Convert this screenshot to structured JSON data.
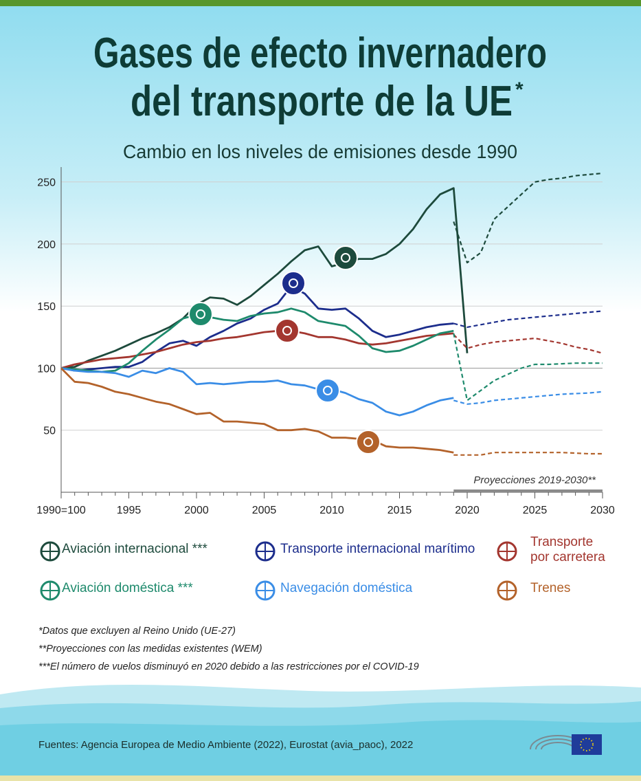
{
  "chart_data": {
    "type": "line",
    "title_lines": [
      "Gases de efecto invernadero",
      "del transporte de la UE"
    ],
    "title_mark": "*",
    "subtitle": "Cambio en los niveles de emisiones desde 1990",
    "x": [
      1990,
      1991,
      1992,
      1993,
      1994,
      1995,
      1996,
      1997,
      1998,
      1999,
      2000,
      2001,
      2002,
      2003,
      2004,
      2005,
      2006,
      2007,
      2008,
      2009,
      2010,
      2011,
      2012,
      2013,
      2014,
      2015,
      2016,
      2017,
      2018,
      2019,
      2020,
      2021,
      2022,
      2023,
      2024,
      2025,
      2026,
      2027,
      2028,
      2029,
      2030
    ],
    "xlim": [
      1990,
      2030
    ],
    "xticks": [
      {
        "value": 1990,
        "label": "1990=100"
      },
      1995,
      2000,
      2005,
      2010,
      2015,
      2020,
      2025,
      2030
    ],
    "ylim": [
      0,
      262
    ],
    "yticks": [
      50,
      100,
      150,
      200,
      250
    ],
    "grid": true,
    "projection_label": "Proyecciones 2019-2030**",
    "projection_range": [
      2019,
      2030
    ],
    "series": [
      {
        "name": "Aviación internacional ***",
        "color": "#1d4a3c",
        "values": [
          100,
          101,
          106,
          110,
          114,
          119,
          124,
          128,
          133,
          140,
          151,
          157,
          156,
          151,
          158,
          167,
          176,
          186,
          195,
          198,
          182,
          185,
          188,
          188,
          192,
          200,
          212,
          228,
          240,
          245,
          112,
          null,
          null,
          null,
          null,
          null,
          null,
          null,
          null,
          null,
          null
        ],
        "projection": [
          null,
          null,
          null,
          null,
          null,
          null,
          null,
          null,
          null,
          null,
          null,
          null,
          null,
          null,
          null,
          null,
          null,
          null,
          null,
          null,
          null,
          null,
          null,
          null,
          null,
          null,
          null,
          null,
          null,
          218,
          185,
          193,
          220,
          230,
          240,
          250,
          252,
          253,
          255,
          256,
          257
        ]
      },
      {
        "name": "Transporte internacional marítimo",
        "color": "#1c2d8c",
        "values": [
          100,
          98,
          99,
          100,
          101,
          101,
          105,
          113,
          120,
          122,
          118,
          125,
          130,
          136,
          140,
          147,
          152,
          166,
          160,
          148,
          147,
          148,
          140,
          130,
          125,
          127,
          130,
          133,
          135,
          136,
          null,
          null,
          null,
          null,
          null,
          null,
          null,
          null,
          null,
          null,
          null
        ],
        "projection": [
          null,
          null,
          null,
          null,
          null,
          null,
          null,
          null,
          null,
          null,
          null,
          null,
          null,
          null,
          null,
          null,
          null,
          null,
          null,
          null,
          null,
          null,
          null,
          null,
          null,
          null,
          null,
          null,
          null,
          136,
          133,
          135,
          137,
          139,
          140,
          141,
          142,
          143,
          144,
          145,
          146
        ]
      },
      {
        "name": "Transporte por carretera",
        "color": "#a3362f",
        "values": [
          100,
          103,
          105,
          107,
          108,
          109,
          111,
          113,
          116,
          119,
          121,
          122,
          124,
          125,
          127,
          129,
          130,
          130,
          128,
          125,
          125,
          123,
          120,
          119,
          120,
          122,
          124,
          126,
          127,
          128,
          null,
          null,
          null,
          null,
          null,
          null,
          null,
          null,
          null,
          null,
          null
        ],
        "projection": [
          null,
          null,
          null,
          null,
          null,
          null,
          null,
          null,
          null,
          null,
          null,
          null,
          null,
          null,
          null,
          null,
          null,
          null,
          null,
          null,
          null,
          null,
          null,
          null,
          null,
          null,
          null,
          null,
          null,
          127,
          116,
          119,
          121,
          122,
          123,
          124,
          122,
          120,
          117,
          115,
          112
        ]
      },
      {
        "name": "Aviación doméstica ***",
        "color": "#1e8a6c",
        "values": [
          100,
          99,
          98,
          97,
          98,
          104,
          114,
          123,
          131,
          140,
          143,
          141,
          139,
          138,
          142,
          144,
          145,
          148,
          145,
          138,
          136,
          134,
          126,
          116,
          113,
          114,
          118,
          123,
          128,
          130,
          null,
          null,
          null,
          null,
          null,
          null,
          null,
          null,
          null,
          null,
          null
        ],
        "projection": [
          null,
          null,
          null,
          null,
          null,
          null,
          null,
          null,
          null,
          null,
          null,
          null,
          null,
          null,
          null,
          null,
          null,
          null,
          null,
          null,
          null,
          null,
          null,
          null,
          null,
          null,
          null,
          null,
          null,
          128,
          74,
          82,
          90,
          95,
          100,
          103,
          103,
          103.5,
          104,
          104,
          104
        ]
      },
      {
        "name": "Navegación doméstica",
        "color": "#3a8de6",
        "values": [
          100,
          98,
          97,
          97,
          96,
          93,
          98,
          96,
          100,
          97,
          87,
          88,
          87,
          88,
          89,
          89,
          90,
          87,
          86,
          83,
          83,
          80,
          75,
          72,
          65,
          62,
          65,
          70,
          74,
          76,
          null,
          null,
          null,
          null,
          null,
          null,
          null,
          null,
          null,
          null,
          null
        ],
        "projection": [
          null,
          null,
          null,
          null,
          null,
          null,
          null,
          null,
          null,
          null,
          null,
          null,
          null,
          null,
          null,
          null,
          null,
          null,
          null,
          null,
          null,
          null,
          null,
          null,
          null,
          null,
          null,
          null,
          null,
          74,
          71,
          72,
          74,
          75,
          76,
          77,
          78,
          79,
          79.5,
          80,
          81
        ]
      },
      {
        "name": "Trenes",
        "color": "#b3622a",
        "values": [
          100,
          89,
          88,
          85,
          81,
          79,
          76,
          73,
          71,
          67,
          63,
          64,
          57,
          57,
          56,
          55,
          50,
          50,
          51,
          49,
          44,
          44,
          43,
          42,
          37,
          36,
          36,
          35,
          34,
          32,
          null,
          null,
          null,
          null,
          null,
          null,
          null,
          null,
          null,
          null,
          null
        ],
        "projection": [
          null,
          null,
          null,
          null,
          null,
          null,
          null,
          null,
          null,
          null,
          null,
          null,
          null,
          null,
          null,
          null,
          null,
          null,
          null,
          null,
          null,
          null,
          null,
          null,
          null,
          null,
          null,
          null,
          null,
          30,
          30,
          30,
          32,
          32,
          32,
          32,
          32,
          32,
          31.5,
          31,
          31
        ]
      }
    ],
    "footnotes": [
      "*Datos que excluyen al Reino Unido (UE-27)",
      "**Proyecciones con las medidas existentes (WEM)",
      "***El número de vuelos disminuyó en 2020 debido a las restricciones por el COVID-19"
    ],
    "source": "Fuentes: Agencia Europea de Medio Ambiente (2022), Eurostat (avia_paoc), 2022"
  }
}
